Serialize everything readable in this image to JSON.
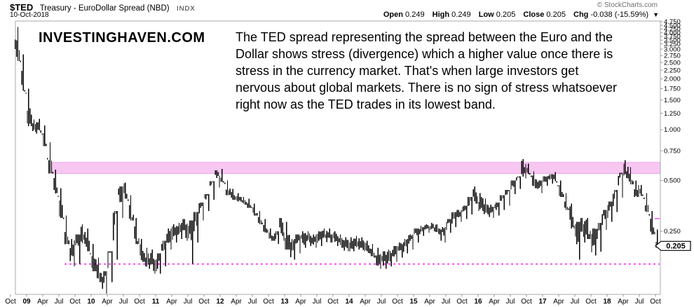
{
  "header": {
    "symbol": "$TED",
    "name": "Treasury - EuroDollar Spread (NBD)",
    "index_tag": "INDX",
    "date": "10-Oct-2018",
    "copyright": "© StockCharts.com",
    "quote": {
      "open_label": "Open",
      "open_value": "0.249",
      "high_label": "High",
      "high_value": "0.249",
      "low_label": "Low",
      "low_value": "0.205",
      "close_label": "Close",
      "close_value": "0.205",
      "chg_label": "Chg",
      "chg_value": "-0.038 (-15.59%)",
      "down_arrow": "▼"
    }
  },
  "watermark": "INVESTINGHAVEN.COM",
  "annotation": {
    "lines": [
      "The TED spread representing the spread between the Euro and the",
      "Dollar shows stress (divergence) which a higher value once there is",
      "stress in the currency market. That's when large investors get",
      "nervous about global markets. There is no sign of stress whatsoever",
      "right now as the TED trades in its lowest band."
    ]
  },
  "colors": {
    "bars": "#000000",
    "frame": "#aaaaaa",
    "ticks": "#999999",
    "band_fill": "#f7c7f2",
    "band_border": "#eeaaea",
    "dotted_line": "#ff00ff",
    "axis_text": "#000000",
    "callout_bg": "#ffffff",
    "callout_border": "#000000"
  },
  "chart_data": {
    "type": "bar",
    "title": "$TED Treasury - EuroDollar Spread (NBD) INDX",
    "frequency": "weekly",
    "y_scale": "log",
    "x_range": [
      "Oct 2008",
      "10 Oct 2018"
    ],
    "y_ticks": [
      4.75,
      4.5,
      4.25,
      4.0,
      3.75,
      3.5,
      3.25,
      3.0,
      2.75,
      2.5,
      2.25,
      2.0,
      1.75,
      1.5,
      1.25,
      1.0,
      0.75,
      0.5,
      0.25
    ],
    "x_ticks": [
      {
        "l": "Oct",
        "fy": 2008.75
      },
      {
        "l": "09",
        "fy": 2009,
        "b": 1
      },
      {
        "l": "Apr",
        "fy": 2009.25
      },
      {
        "l": "Jul",
        "fy": 2009.5
      },
      {
        "l": "Oct",
        "fy": 2009.75
      },
      {
        "l": "10",
        "fy": 2010,
        "b": 1
      },
      {
        "l": "Apr",
        "fy": 2010.25
      },
      {
        "l": "Jul",
        "fy": 2010.5
      },
      {
        "l": "Oct",
        "fy": 2010.75
      },
      {
        "l": "11",
        "fy": 2011,
        "b": 1
      },
      {
        "l": "Apr",
        "fy": 2011.25
      },
      {
        "l": "Jul",
        "fy": 2011.5
      },
      {
        "l": "Oct",
        "fy": 2011.75
      },
      {
        "l": "12",
        "fy": 2012,
        "b": 1
      },
      {
        "l": "Apr",
        "fy": 2012.25
      },
      {
        "l": "Jul",
        "fy": 2012.5
      },
      {
        "l": "Oct",
        "fy": 2012.75
      },
      {
        "l": "13",
        "fy": 2013,
        "b": 1
      },
      {
        "l": "Apr",
        "fy": 2013.25
      },
      {
        "l": "Jul",
        "fy": 2013.5
      },
      {
        "l": "Oct",
        "fy": 2013.75
      },
      {
        "l": "14",
        "fy": 2014,
        "b": 1
      },
      {
        "l": "Apr",
        "fy": 2014.25
      },
      {
        "l": "Jul",
        "fy": 2014.5
      },
      {
        "l": "Oct",
        "fy": 2014.75
      },
      {
        "l": "15",
        "fy": 2015,
        "b": 1
      },
      {
        "l": "Apr",
        "fy": 2015.25
      },
      {
        "l": "Jul",
        "fy": 2015.5
      },
      {
        "l": "Oct",
        "fy": 2015.75
      },
      {
        "l": "16",
        "fy": 2016,
        "b": 1
      },
      {
        "l": "Apr",
        "fy": 2016.25
      },
      {
        "l": "Jul",
        "fy": 2016.5
      },
      {
        "l": "Oct",
        "fy": 2016.75
      },
      {
        "l": "17",
        "fy": 2017,
        "b": 1
      },
      {
        "l": "Apr",
        "fy": 2017.25
      },
      {
        "l": "Jul",
        "fy": 2017.5
      },
      {
        "l": "Oct",
        "fy": 2017.75
      },
      {
        "l": "18",
        "fy": 2018,
        "b": 1
      },
      {
        "l": "Apr",
        "fy": 2018.25
      },
      {
        "l": "Jul",
        "fy": 2018.5
      },
      {
        "l": "Oct",
        "fy": 2018.75
      }
    ],
    "highlight_band": {
      "from": 0.55,
      "to": 0.64,
      "start_fy": 2009.4
    },
    "dotted_level": {
      "value": 0.16,
      "start_fy": 2009.59
    },
    "last_price": 0.205,
    "last_price_label": "0.205",
    "monthly_ohlc_comment": "entries are [year-month, low, high, close]",
    "monthly_ohlc": [
      [
        "2008-10",
        3.0,
        4.3,
        3.9
      ],
      [
        "2008-11",
        2.55,
        4.05,
        2.8
      ],
      [
        "2008-12",
        1.7,
        2.8,
        1.95
      ],
      [
        "2009-01",
        1.05,
        1.75,
        1.2
      ],
      [
        "2009-02",
        0.95,
        1.15,
        1.02
      ],
      [
        "2009-03",
        0.96,
        1.16,
        1.08
      ],
      [
        "2009-04",
        0.8,
        1.06,
        0.86
      ],
      [
        "2009-05",
        0.55,
        0.84,
        0.6
      ],
      [
        "2009-06",
        0.42,
        0.58,
        0.46
      ],
      [
        "2009-07",
        0.3,
        0.45,
        0.34
      ],
      [
        "2009-08",
        0.21,
        0.31,
        0.24
      ],
      [
        "2009-09",
        0.155,
        0.225,
        0.18
      ],
      [
        "2009-10",
        0.16,
        0.24,
        0.22
      ],
      [
        "2009-11",
        0.21,
        0.275,
        0.24
      ],
      [
        "2009-12",
        0.19,
        0.26,
        0.22
      ],
      [
        "2010-01",
        0.145,
        0.21,
        0.165
      ],
      [
        "2010-02",
        0.125,
        0.175,
        0.145
      ],
      [
        "2010-03",
        0.105,
        0.145,
        0.125
      ],
      [
        "2010-04",
        0.125,
        0.19,
        0.17
      ],
      [
        "2010-05",
        0.17,
        0.33,
        0.29
      ],
      [
        "2010-06",
        0.3,
        0.46,
        0.42
      ],
      [
        "2010-07",
        0.39,
        0.485,
        0.44
      ],
      [
        "2010-08",
        0.29,
        0.41,
        0.32
      ],
      [
        "2010-09",
        0.21,
        0.3,
        0.24
      ],
      [
        "2010-10",
        0.165,
        0.225,
        0.185
      ],
      [
        "2010-11",
        0.15,
        0.2,
        0.17
      ],
      [
        "2010-12",
        0.14,
        0.195,
        0.17
      ],
      [
        "2011-01",
        0.14,
        0.185,
        0.16
      ],
      [
        "2011-02",
        0.155,
        0.22,
        0.2
      ],
      [
        "2011-03",
        0.195,
        0.26,
        0.235
      ],
      [
        "2011-04",
        0.215,
        0.275,
        0.245
      ],
      [
        "2011-05",
        0.225,
        0.28,
        0.25
      ],
      [
        "2011-06",
        0.22,
        0.295,
        0.27
      ],
      [
        "2011-07",
        0.16,
        0.29,
        0.245
      ],
      [
        "2011-08",
        0.215,
        0.325,
        0.3
      ],
      [
        "2011-09",
        0.29,
        0.37,
        0.345
      ],
      [
        "2011-10",
        0.33,
        0.415,
        0.395
      ],
      [
        "2011-11",
        0.385,
        0.495,
        0.47
      ],
      [
        "2011-12",
        0.455,
        0.575,
        0.555
      ],
      [
        "2012-01",
        0.49,
        0.585,
        0.51
      ],
      [
        "2012-02",
        0.41,
        0.5,
        0.43
      ],
      [
        "2012-03",
        0.385,
        0.445,
        0.405
      ],
      [
        "2012-04",
        0.375,
        0.42,
        0.39
      ],
      [
        "2012-05",
        0.36,
        0.4,
        0.38
      ],
      [
        "2012-06",
        0.345,
        0.39,
        0.36
      ],
      [
        "2012-07",
        0.31,
        0.365,
        0.33
      ],
      [
        "2012-08",
        0.275,
        0.33,
        0.295
      ],
      [
        "2012-09",
        0.245,
        0.295,
        0.265
      ],
      [
        "2012-10",
        0.22,
        0.26,
        0.235
      ],
      [
        "2012-11",
        0.21,
        0.25,
        0.225
      ],
      [
        "2012-12",
        0.22,
        0.3,
        0.275
      ],
      [
        "2013-01",
        0.195,
        0.285,
        0.215
      ],
      [
        "2013-02",
        0.17,
        0.225,
        0.19
      ],
      [
        "2013-03",
        0.185,
        0.24,
        0.22
      ],
      [
        "2013-04",
        0.2,
        0.25,
        0.23
      ],
      [
        "2013-05",
        0.205,
        0.25,
        0.23
      ],
      [
        "2013-06",
        0.2,
        0.24,
        0.22
      ],
      [
        "2013-07",
        0.205,
        0.25,
        0.23
      ],
      [
        "2013-08",
        0.215,
        0.26,
        0.24
      ],
      [
        "2013-09",
        0.215,
        0.26,
        0.24
      ],
      [
        "2013-10",
        0.205,
        0.25,
        0.23
      ],
      [
        "2013-11",
        0.2,
        0.24,
        0.22
      ],
      [
        "2013-12",
        0.19,
        0.23,
        0.21
      ],
      [
        "2014-01",
        0.19,
        0.23,
        0.21
      ],
      [
        "2014-02",
        0.195,
        0.235,
        0.215
      ],
      [
        "2014-03",
        0.19,
        0.23,
        0.21
      ],
      [
        "2014-04",
        0.185,
        0.22,
        0.2
      ],
      [
        "2014-05",
        0.175,
        0.21,
        0.19
      ],
      [
        "2014-06",
        0.15,
        0.2,
        0.17
      ],
      [
        "2014-07",
        0.15,
        0.19,
        0.17
      ],
      [
        "2014-08",
        0.155,
        0.195,
        0.175
      ],
      [
        "2014-09",
        0.165,
        0.205,
        0.185
      ],
      [
        "2014-10",
        0.175,
        0.215,
        0.195
      ],
      [
        "2014-11",
        0.185,
        0.225,
        0.205
      ],
      [
        "2014-12",
        0.195,
        0.24,
        0.22
      ],
      [
        "2015-01",
        0.215,
        0.26,
        0.25
      ],
      [
        "2015-02",
        0.235,
        0.27,
        0.255
      ],
      [
        "2015-03",
        0.245,
        0.275,
        0.26
      ],
      [
        "2015-04",
        0.25,
        0.28,
        0.265
      ],
      [
        "2015-05",
        0.24,
        0.275,
        0.26
      ],
      [
        "2015-06",
        0.215,
        0.265,
        0.245
      ],
      [
        "2015-07",
        0.245,
        0.295,
        0.275
      ],
      [
        "2015-08",
        0.265,
        0.325,
        0.305
      ],
      [
        "2015-09",
        0.285,
        0.335,
        0.315
      ],
      [
        "2015-10",
        0.295,
        0.355,
        0.33
      ],
      [
        "2015-11",
        0.315,
        0.4,
        0.375
      ],
      [
        "2015-12",
        0.365,
        0.46,
        0.415
      ],
      [
        "2016-01",
        0.33,
        0.42,
        0.36
      ],
      [
        "2016-02",
        0.315,
        0.39,
        0.35
      ],
      [
        "2016-03",
        0.3,
        0.36,
        0.33
      ],
      [
        "2016-04",
        0.31,
        0.37,
        0.35
      ],
      [
        "2016-05",
        0.335,
        0.41,
        0.39
      ],
      [
        "2016-06",
        0.355,
        0.44,
        0.42
      ],
      [
        "2016-07",
        0.415,
        0.5,
        0.47
      ],
      [
        "2016-08",
        0.445,
        0.53,
        0.51
      ],
      [
        "2016-09",
        0.515,
        0.67,
        0.59
      ],
      [
        "2016-10",
        0.545,
        0.63,
        0.565
      ],
      [
        "2016-11",
        0.45,
        0.565,
        0.49
      ],
      [
        "2016-12",
        0.42,
        0.5,
        0.47
      ],
      [
        "2017-01",
        0.465,
        0.53,
        0.5
      ],
      [
        "2017-02",
        0.48,
        0.545,
        0.52
      ],
      [
        "2017-03",
        0.495,
        0.56,
        0.53
      ],
      [
        "2017-04",
        0.4,
        0.5,
        0.43
      ],
      [
        "2017-05",
        0.335,
        0.42,
        0.37
      ],
      [
        "2017-06",
        0.26,
        0.365,
        0.3
      ],
      [
        "2017-07",
        0.17,
        0.285,
        0.24
      ],
      [
        "2017-08",
        0.215,
        0.3,
        0.27
      ],
      [
        "2017-09",
        0.225,
        0.3,
        0.26
      ],
      [
        "2017-10",
        0.18,
        0.26,
        0.21
      ],
      [
        "2017-11",
        0.19,
        0.28,
        0.25
      ],
      [
        "2017-12",
        0.255,
        0.335,
        0.31
      ],
      [
        "2018-01",
        0.285,
        0.375,
        0.34
      ],
      [
        "2018-02",
        0.325,
        0.44,
        0.4
      ],
      [
        "2018-03",
        0.395,
        0.555,
        0.52
      ],
      [
        "2018-04",
        0.515,
        0.66,
        0.6
      ],
      [
        "2018-05",
        0.475,
        0.6,
        0.52
      ],
      [
        "2018-06",
        0.4,
        0.5,
        0.43
      ],
      [
        "2018-07",
        0.405,
        0.47,
        0.44
      ],
      [
        "2018-08",
        0.325,
        0.42,
        0.355
      ],
      [
        "2018-09",
        0.24,
        0.33,
        0.27
      ],
      [
        "2018-10",
        0.2,
        0.26,
        0.205
      ]
    ]
  }
}
